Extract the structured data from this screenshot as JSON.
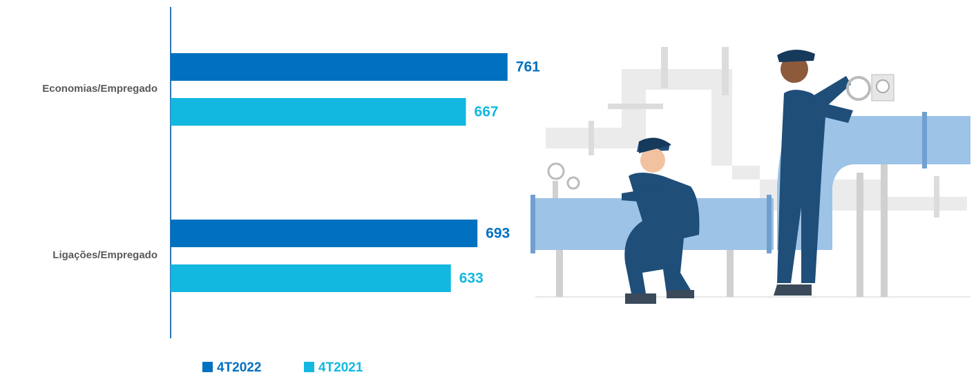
{
  "chart_data": {
    "type": "hbar",
    "categories": [
      "Economias/Empregado",
      "Ligações/Empregado"
    ],
    "series": [
      {
        "name": "4T2022",
        "color": "#0070c0",
        "values": [
          761,
          693
        ]
      },
      {
        "name": "4T2021",
        "color": "#12b8e0",
        "values": [
          667,
          633
        ]
      }
    ],
    "legend": "bottom"
  }
}
